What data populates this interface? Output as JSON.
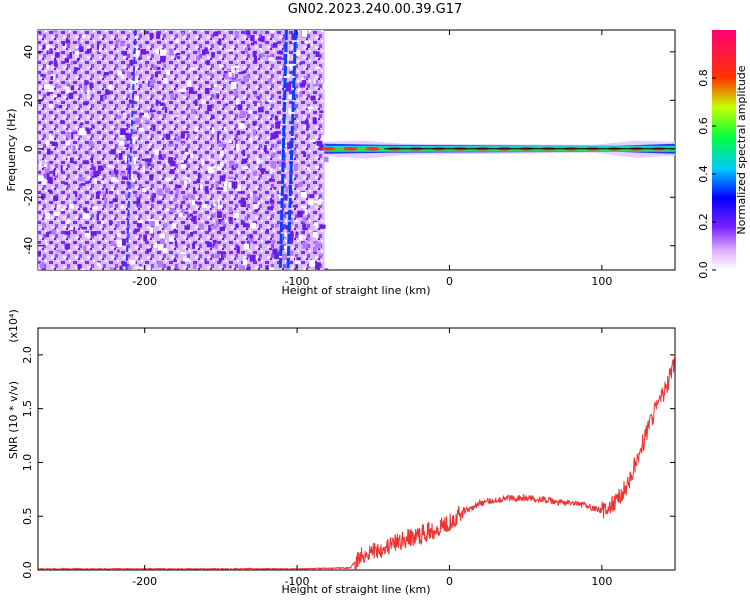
{
  "title": "GN02.2023.240.00.39.G17",
  "chart_data": [
    {
      "type": "heatmap",
      "xlabel": "Height of straight line (km)",
      "ylabel": "Frequency (Hz)",
      "xlim": [
        -270,
        148
      ],
      "ylim": [
        -50,
        49
      ],
      "x_ticks": [
        -200,
        -100,
        0,
        100
      ],
      "y_ticks": [
        -40,
        -20,
        0,
        20,
        40
      ],
      "x_tick_labels": [
        "-200",
        "-100",
        "0",
        "100"
      ],
      "y_tick_labels": [
        "-40",
        "-20",
        "0",
        "20",
        "40"
      ],
      "noise_region_x": [
        -270,
        -82
      ],
      "signal_line_freq": 0,
      "signal_region_x": [
        -82,
        148
      ],
      "colorbar": {
        "label": "Normalized spectral amplitude",
        "range": [
          0,
          1
        ],
        "ticks": [
          0.0,
          0.2,
          0.4,
          0.6,
          0.8
        ],
        "tick_labels": [
          "0.0",
          "0.2",
          "0.4",
          "0.6",
          "0.8"
        ],
        "colormap": "rainbow (white-purple-blue-cyan-green-yellow-red-magenta)"
      }
    },
    {
      "type": "line",
      "xlabel": "Height of straight line (km)",
      "ylabel": "SNR (10 * v/v)",
      "y_multiplier": "(x10⁴)",
      "xlim": [
        -270,
        148
      ],
      "ylim": [
        0,
        2.25
      ],
      "x_ticks": [
        -200,
        -100,
        0,
        100
      ],
      "y_ticks": [
        0.0,
        0.5,
        1.0,
        1.5,
        2.0
      ],
      "x_tick_labels": [
        "-200",
        "-100",
        "0",
        "100"
      ],
      "y_tick_labels": [
        "0.0",
        "0.5",
        "1.0",
        "1.5",
        "2.0"
      ],
      "series": [
        {
          "color": "#ee3333",
          "x": [
            -270,
            -200,
            -100,
            -65,
            -60,
            -50,
            -40,
            -30,
            -20,
            -10,
            0,
            10,
            20,
            30,
            40,
            50,
            60,
            70,
            80,
            90,
            100,
            105,
            110,
            115,
            120,
            125,
            130,
            135,
            140,
            145,
            148
          ],
          "y": [
            0.01,
            0.01,
            0.01,
            0.02,
            0.12,
            0.18,
            0.22,
            0.28,
            0.32,
            0.38,
            0.45,
            0.55,
            0.62,
            0.65,
            0.67,
            0.67,
            0.66,
            0.63,
            0.62,
            0.6,
            0.55,
            0.58,
            0.65,
            0.75,
            0.9,
            1.1,
            1.3,
            1.5,
            1.62,
            1.8,
            1.95
          ]
        }
      ]
    }
  ]
}
